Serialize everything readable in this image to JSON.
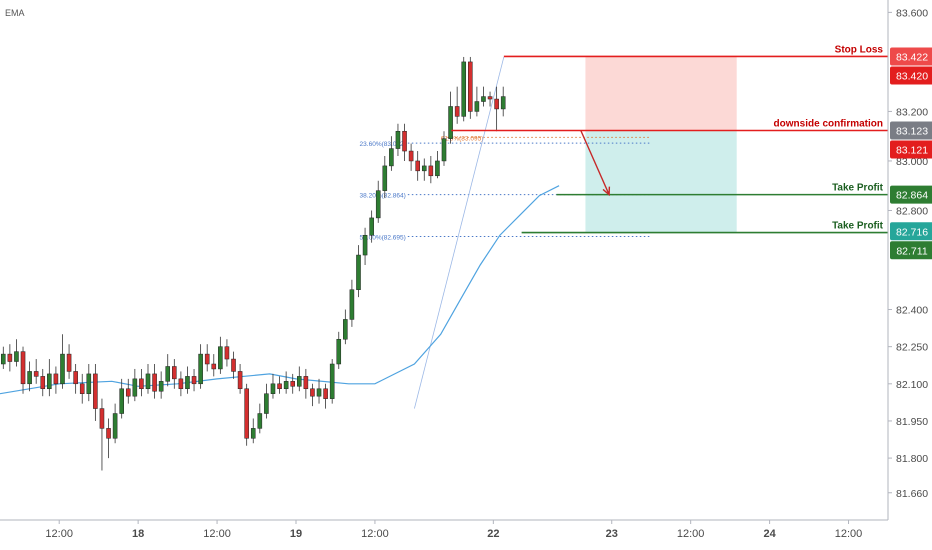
{
  "chart_data": {
    "type": "candlestick",
    "indicator_label": "EMA",
    "x_ticks": [
      {
        "label": "12:00",
        "t": 12
      },
      {
        "label": "18",
        "t": 24
      },
      {
        "label": "12:00",
        "t": 36
      },
      {
        "label": "19",
        "t": 48
      },
      {
        "label": "12:00",
        "t": 60
      },
      {
        "label": "22",
        "t": 78
      },
      {
        "label": "23",
        "t": 96
      },
      {
        "label": "12:00",
        "t": 108
      },
      {
        "label": "24",
        "t": 120
      },
      {
        "label": "12:00",
        "t": 132
      }
    ],
    "y_ticks": [
      81.66,
      81.8,
      81.95,
      82.1,
      82.25,
      82.4,
      82.8,
      83.0,
      83.2,
      83.6
    ],
    "y_tick_labels": [
      "81.660",
      "81.800",
      "81.950",
      "82.100",
      "82.250",
      "82.400",
      "82.800",
      "83.000",
      "83.200",
      "83.600"
    ],
    "ylim": [
      81.55,
      83.65
    ],
    "xlim": [
      3,
      138
    ],
    "candles": [
      [
        82.18,
        82.22,
        82.25,
        82.16
      ],
      [
        82.22,
        82.19,
        82.26,
        82.15
      ],
      [
        82.19,
        82.23,
        82.28,
        82.17
      ],
      [
        82.23,
        82.1,
        82.25,
        82.06
      ],
      [
        82.1,
        82.15,
        82.19,
        82.07
      ],
      [
        82.15,
        82.13,
        82.2,
        82.1
      ],
      [
        82.13,
        82.08,
        82.16,
        82.05
      ],
      [
        82.08,
        82.14,
        82.2,
        82.05
      ],
      [
        82.14,
        82.1,
        82.17,
        82.06
      ],
      [
        82.1,
        82.22,
        82.3,
        82.08
      ],
      [
        82.22,
        82.15,
        82.26,
        82.12
      ],
      [
        82.15,
        82.1,
        82.18,
        82.06
      ],
      [
        82.1,
        82.06,
        82.14,
        82.02
      ],
      [
        82.06,
        82.14,
        82.18,
        82.03
      ],
      [
        82.14,
        82.0,
        82.18,
        81.95
      ],
      [
        82.0,
        81.92,
        82.04,
        81.75
      ],
      [
        81.92,
        81.88,
        81.96,
        81.8
      ],
      [
        81.88,
        81.98,
        82.02,
        81.86
      ],
      [
        81.98,
        82.08,
        82.12,
        81.96
      ],
      [
        82.08,
        82.05,
        82.12,
        82.02
      ],
      [
        82.05,
        82.12,
        82.16,
        82.03
      ],
      [
        82.12,
        82.08,
        82.16,
        82.05
      ],
      [
        82.08,
        82.14,
        82.18,
        82.06
      ],
      [
        82.14,
        82.07,
        82.18,
        82.04
      ],
      [
        82.07,
        82.11,
        82.15,
        82.04
      ],
      [
        82.11,
        82.17,
        82.22,
        82.09
      ],
      [
        82.17,
        82.12,
        82.2,
        82.08
      ],
      [
        82.12,
        82.08,
        82.15,
        82.05
      ],
      [
        82.08,
        82.13,
        82.17,
        82.06
      ],
      [
        82.13,
        82.1,
        82.16,
        82.07
      ],
      [
        82.1,
        82.22,
        82.26,
        82.08
      ],
      [
        82.22,
        82.18,
        82.26,
        82.15
      ],
      [
        82.18,
        82.16,
        82.22,
        82.13
      ],
      [
        82.16,
        82.25,
        82.29,
        82.14
      ],
      [
        82.25,
        82.2,
        82.28,
        82.17
      ],
      [
        82.2,
        82.15,
        82.23,
        82.12
      ],
      [
        82.15,
        82.08,
        82.18,
        82.06
      ],
      [
        82.08,
        81.88,
        82.1,
        81.85
      ],
      [
        81.88,
        81.92,
        81.96,
        81.86
      ],
      [
        81.92,
        81.98,
        82.02,
        81.9
      ],
      [
        81.98,
        82.06,
        82.1,
        81.96
      ],
      [
        82.06,
        82.1,
        82.14,
        82.04
      ],
      [
        82.1,
        82.08,
        82.13,
        82.06
      ],
      [
        82.08,
        82.11,
        82.15,
        82.06
      ],
      [
        82.11,
        82.09,
        82.14,
        82.06
      ],
      [
        82.09,
        82.13,
        82.17,
        82.07
      ],
      [
        82.13,
        82.08,
        82.16,
        82.04
      ],
      [
        82.08,
        82.05,
        82.1,
        82.01
      ],
      [
        82.05,
        82.08,
        82.12,
        82.02
      ],
      [
        82.08,
        82.04,
        82.1,
        82.0
      ],
      [
        82.04,
        82.18,
        82.2,
        82.02
      ],
      [
        82.18,
        82.28,
        82.31,
        82.16
      ],
      [
        82.28,
        82.36,
        82.4,
        82.26
      ],
      [
        82.36,
        82.48,
        82.52,
        82.33
      ],
      [
        82.48,
        82.62,
        82.66,
        82.45
      ],
      [
        82.62,
        82.7,
        82.73,
        82.58
      ],
      [
        82.7,
        82.77,
        82.8,
        82.67
      ],
      [
        82.77,
        82.88,
        82.92,
        82.75
      ],
      [
        82.88,
        82.98,
        83.02,
        82.85
      ],
      [
        82.98,
        83.05,
        83.1,
        82.96
      ],
      [
        83.05,
        83.12,
        83.15,
        83.02
      ],
      [
        83.12,
        83.04,
        83.15,
        83.0
      ],
      [
        83.04,
        83.0,
        83.07,
        82.96
      ],
      [
        83.0,
        82.96,
        83.04,
        82.92
      ],
      [
        82.96,
        82.98,
        83.01,
        82.92
      ],
      [
        82.98,
        82.94,
        83.02,
        82.91
      ],
      [
        82.94,
        83.0,
        83.04,
        82.93
      ],
      [
        83.0,
        83.09,
        83.12,
        82.98
      ],
      [
        83.09,
        83.22,
        83.28,
        83.07
      ],
      [
        83.22,
        83.18,
        83.3,
        83.15
      ],
      [
        83.18,
        83.4,
        83.42,
        83.16
      ],
      [
        83.4,
        83.2,
        83.42,
        83.17
      ],
      [
        83.2,
        83.24,
        83.3,
        83.18
      ],
      [
        83.24,
        83.26,
        83.3,
        83.22
      ],
      [
        83.26,
        83.25,
        83.28,
        83.22
      ],
      [
        83.25,
        83.21,
        83.3,
        83.12
      ],
      [
        83.21,
        83.26,
        83.3,
        83.18
      ]
    ],
    "ema": [
      [
        3,
        82.06
      ],
      [
        12,
        82.1
      ],
      [
        20,
        82.11
      ],
      [
        24,
        82.09
      ],
      [
        30,
        82.1
      ],
      [
        36,
        82.12
      ],
      [
        44,
        82.14
      ],
      [
        48,
        82.12
      ],
      [
        56,
        82.1
      ],
      [
        60,
        82.1
      ],
      [
        66,
        82.18
      ],
      [
        70,
        82.3
      ],
      [
        73,
        82.44
      ],
      [
        76,
        82.58
      ],
      [
        79,
        82.7
      ],
      [
        82,
        82.78
      ],
      [
        85,
        82.86
      ],
      [
        88,
        82.9
      ]
    ],
    "levels": [
      {
        "label": "Stop Loss",
        "value": 83.422,
        "x_start": 79.6
      },
      {
        "label": "downside confirmation",
        "value": 83.123,
        "x_start": 71.6
      },
      {
        "label": "Take Profit",
        "value": 82.864,
        "x_start": 87.6
      },
      {
        "label": "Take Profit",
        "value": 82.711,
        "x_start": 82.3
      }
    ],
    "price_tags": [
      {
        "label": "83.422",
        "value": 83.422,
        "color": "#ee4a4a"
      },
      {
        "label": "83.420",
        "value": 83.42,
        "color": "#e31e1e"
      },
      {
        "label": "83.123",
        "value": 83.123,
        "color": "#7a7d85"
      },
      {
        "label": "83.121",
        "value": 83.121,
        "color": "#e31e1e"
      },
      {
        "label": "82.864",
        "value": 82.864,
        "color": "#2e7d32"
      },
      {
        "label": "82.716",
        "value": 82.716,
        "color": "#26a69a"
      },
      {
        "label": "82.711",
        "value": 82.711,
        "color": "#2e7d32"
      }
    ],
    "fib_levels": [
      {
        "label": "23.60%(83.072)",
        "value": 83.072
      },
      {
        "label": "38.20%(82.864)",
        "value": 82.864
      },
      {
        "label": "50.00%(82.695)",
        "value": 82.695
      }
    ],
    "fib_mark": {
      "label": "61.8%(83.095)",
      "value": 83.095
    },
    "position": {
      "t_start": 92,
      "t_end": 115,
      "stop": 83.422,
      "entry": 83.123,
      "target": 82.711
    },
    "arrow": {
      "from": [
        91.3,
        83.123
      ],
      "to": [
        95.6,
        82.864
      ]
    },
    "colors": {
      "up": "#2e7d32",
      "down": "#d32f2f",
      "ema": "#4fa3e0",
      "stop_line": "#e31e1e",
      "tp_line": "#2e7d32",
      "fib": "#4a78c8",
      "risk_zone": "#fcd9d6",
      "reward_zone": "#cfeeec"
    }
  }
}
